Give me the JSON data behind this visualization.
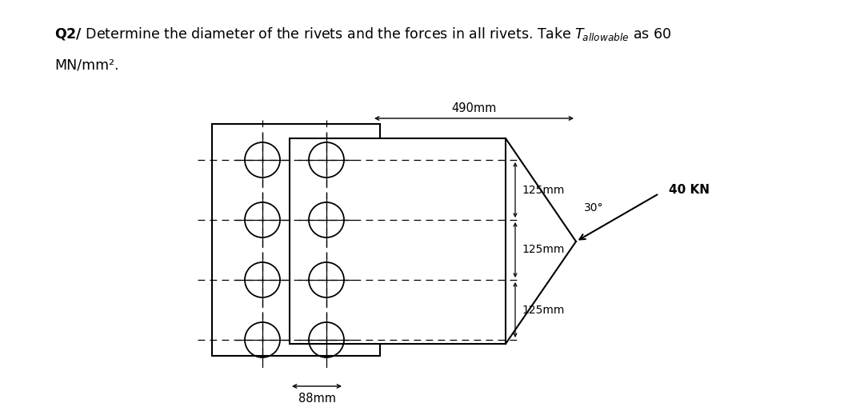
{
  "bg_color": "#ffffff",
  "fig_width": 10.8,
  "fig_height": 5.09,
  "dim_490_label": "490mm",
  "dim_125_labels": [
    "125mm",
    "125mm",
    "125mm"
  ],
  "dim_88_label": "88mm",
  "angle_label": "30°",
  "force_label": "40 KN",
  "title_line1_bold": "Q2/",
  "title_line1_rest": " Determine the diameter of the rivets and the forces in all rivets. Take ",
  "title_tau": "T",
  "title_allowable": "allowable",
  "title_as60": " as 60",
  "title_line2": "MN/mm²."
}
